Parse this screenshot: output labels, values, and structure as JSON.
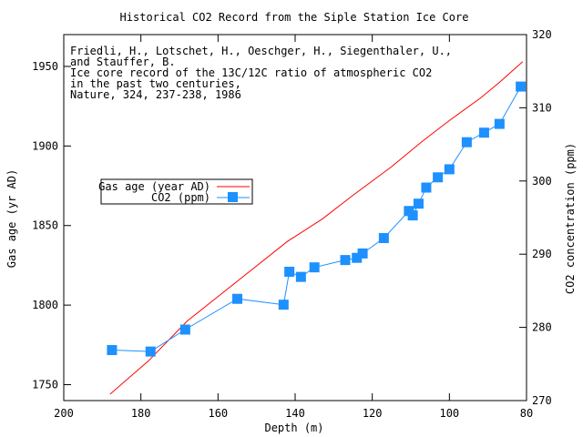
{
  "chart_data": {
    "type": "line",
    "title": "Historical CO2 Record from the Siple Station Ice Core",
    "xlabel": "Depth (m)",
    "ylabel": "Gas age (yr AD)",
    "y2label": "CO2 concentration (ppm)",
    "xlim": [
      200,
      80
    ],
    "ylim": [
      1740,
      1970
    ],
    "y2lim": [
      270,
      320
    ],
    "x_ticks": [
      200,
      180,
      160,
      140,
      120,
      100,
      80
    ],
    "y_ticks": [
      1750,
      1800,
      1850,
      1900,
      1950
    ],
    "y2_ticks": [
      270,
      280,
      290,
      300,
      310,
      320
    ],
    "grid": false,
    "legend_position": "center-left",
    "annotation": [
      "Friedli, H., Lotschet, H., Oeschger, H., Siegenthaler, U.,",
      "and Stauffer, B.",
      "Ice core record of the 13C/12C ratio of atmospheric CO2",
      "in the past two centuries,",
      "Nature, 324, 237-238, 1986"
    ],
    "series": [
      {
        "name": "Gas age (year AD)",
        "axis": "left",
        "color": "#ff0000",
        "style": "line",
        "x": [
          188,
          178,
          168,
          155,
          142,
          133,
          125,
          115,
          107,
          100,
          92,
          87,
          81
        ],
        "y": [
          1744,
          1765,
          1790,
          1815,
          1840,
          1854,
          1869,
          1887,
          1903,
          1916,
          1930,
          1940,
          1953
        ]
      },
      {
        "name": "CO2 (ppm)",
        "axis": "right",
        "color": "#1e90ff",
        "style": "line-square",
        "x": [
          187.5,
          177.5,
          168.5,
          155,
          143,
          141.5,
          138.5,
          135,
          127,
          124,
          122.5,
          117,
          110.5,
          109.5,
          108,
          106,
          103,
          100,
          95.5,
          91,
          87,
          81.5
        ],
        "y": [
          276.9,
          276.7,
          279.7,
          283.9,
          283.1,
          287.6,
          286.9,
          288.2,
          289.2,
          289.5,
          290.1,
          292.2,
          295.9,
          295.3,
          296.9,
          299.1,
          300.5,
          301.6,
          305.3,
          306.6,
          307.8,
          312.9
        ]
      }
    ]
  }
}
